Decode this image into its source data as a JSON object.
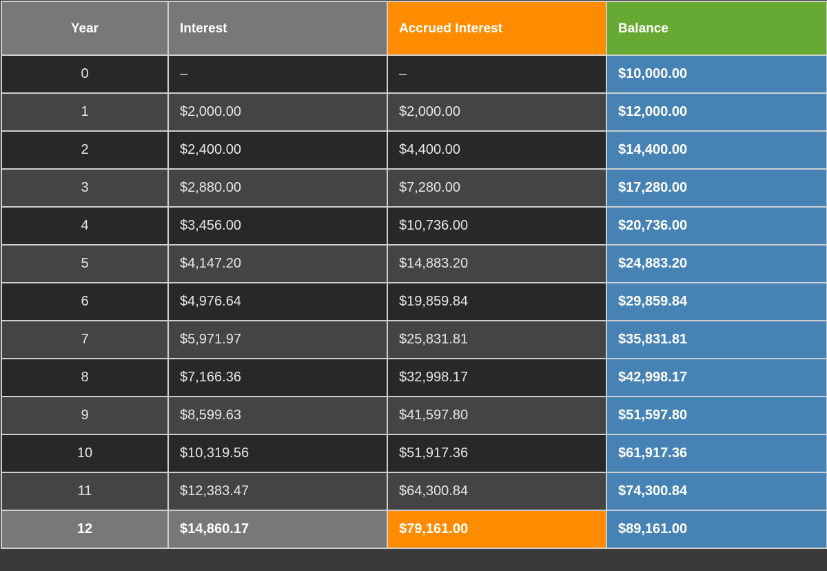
{
  "headers": [
    "Year",
    "Interest",
    "Accrued Interest",
    "Balance"
  ],
  "colors": {
    "header": "#787878",
    "accrued_header": "#ff8c00",
    "balance_header": "#66aa33",
    "balance_cells": "#4682b4",
    "row_dark": "#282828",
    "row_alt": "#444444"
  },
  "rows": [
    [
      "0",
      "–",
      "–",
      "$10,000.00"
    ],
    [
      "1",
      "$2,000.00",
      "$2,000.00",
      "$12,000.00"
    ],
    [
      "2",
      "$2,400.00",
      "$4,400.00",
      "$14,400.00"
    ],
    [
      "3",
      "$2,880.00",
      "$7,280.00",
      "$17,280.00"
    ],
    [
      "4",
      "$3,456.00",
      "$10,736.00",
      "$20,736.00"
    ],
    [
      "5",
      "$4,147.20",
      "$14,883.20",
      "$24,883.20"
    ],
    [
      "6",
      "$4,976.64",
      "$19,859.84",
      "$29,859.84"
    ],
    [
      "7",
      "$5,971.97",
      "$25,831.81",
      "$35,831.81"
    ],
    [
      "8",
      "$7,166.36",
      "$32,998.17",
      "$42,998.17"
    ],
    [
      "9",
      "$8,599.63",
      "$41,597.80",
      "$51,597.80"
    ],
    [
      "10",
      "$10,319.56",
      "$51,917.36",
      "$61,917.36"
    ],
    [
      "11",
      "$12,383.47",
      "$64,300.84",
      "$74,300.84"
    ]
  ],
  "total": [
    "12",
    "$14,860.17",
    "$79,161.00",
    "$89,161.00"
  ]
}
